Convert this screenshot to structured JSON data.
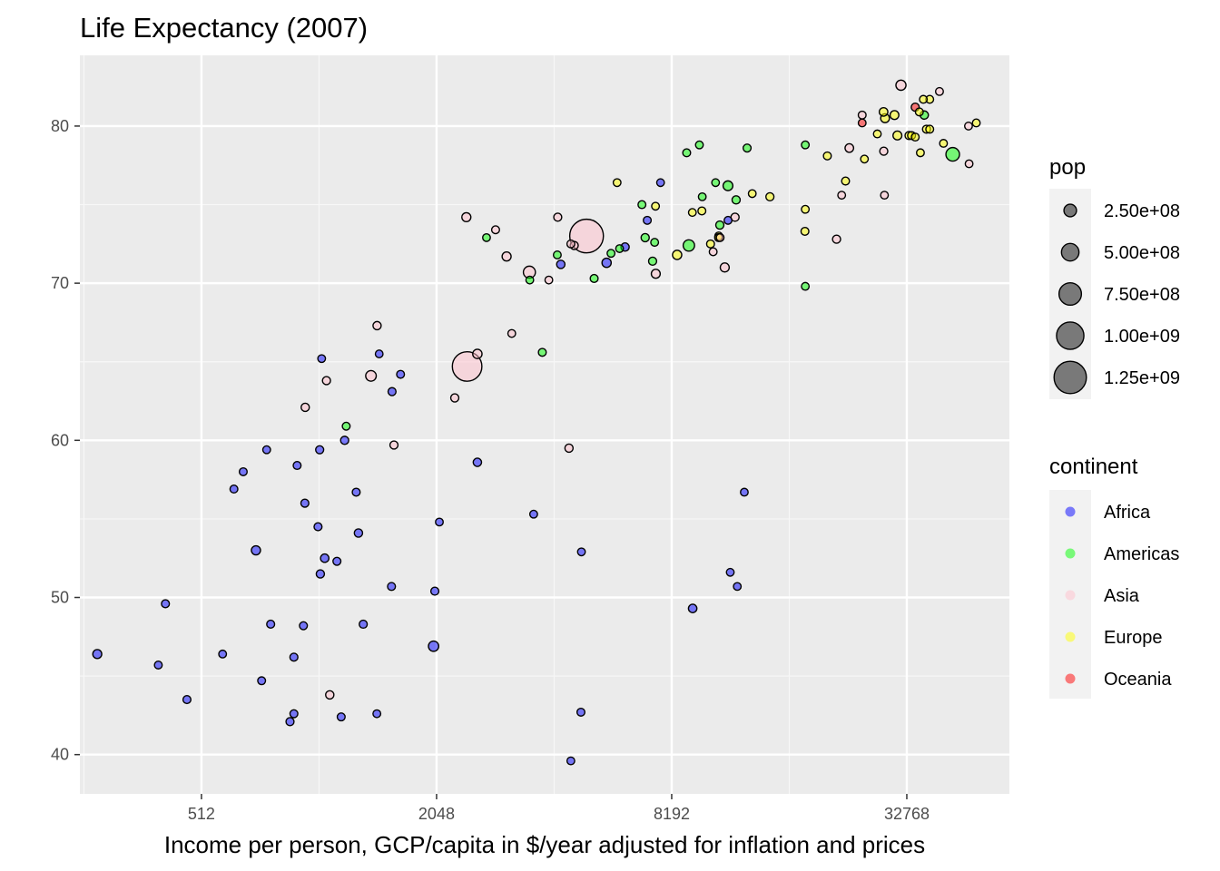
{
  "chart_data": {
    "type": "scatter",
    "title": "Life Expectancy (2007)",
    "xlabel": "Income per person, GCP/capita in $/year adjusted for inflation and prices",
    "ylabel": "",
    "x_scale": "log2",
    "xlim": [
      250,
      60000
    ],
    "ylim": [
      37.5,
      84.5
    ],
    "x_ticks": [
      512,
      2048,
      8192,
      32768
    ],
    "x_tick_labels": [
      "512",
      "2048",
      "8192",
      "32768"
    ],
    "y_ticks": [
      40,
      50,
      60,
      70,
      80
    ],
    "y_tick_labels": [
      "40",
      "50",
      "60",
      "70",
      "80"
    ],
    "grid": true,
    "size_legend": {
      "title": "pop",
      "values": [
        250000000,
        500000000,
        750000000,
        1000000000,
        1250000000
      ],
      "labels": [
        "2.50e+08",
        "5.00e+08",
        "7.50e+08",
        "1.00e+09",
        "1.25e+09"
      ]
    },
    "color_legend": {
      "title": "continent",
      "entries": [
        {
          "name": "Africa",
          "color": "#0000ff"
        },
        {
          "name": "Americas",
          "color": "#00ff00"
        },
        {
          "name": "Asia",
          "color": "#ffc0cb"
        },
        {
          "name": "Europe",
          "color": "#ffff00"
        },
        {
          "name": "Oceania",
          "color": "#ff0000"
        }
      ]
    },
    "series": [
      {
        "name": "Africa",
        "points": [
          {
            "x": 277,
            "y": 46.4,
            "pop": 69000000
          },
          {
            "x": 414,
            "y": 49.6,
            "pop": 15000000
          },
          {
            "x": 397,
            "y": 45.7,
            "pop": 6000000
          },
          {
            "x": 470,
            "y": 43.5,
            "pop": 15000000
          },
          {
            "x": 620,
            "y": 56.9,
            "pop": 11000000
          },
          {
            "x": 655,
            "y": 58.0,
            "pop": 9000000
          },
          {
            "x": 706,
            "y": 53.0,
            "pop": 76000000
          },
          {
            "x": 580,
            "y": 46.4,
            "pop": 4000000
          },
          {
            "x": 730,
            "y": 44.7,
            "pop": 9000000
          },
          {
            "x": 752,
            "y": 59.4,
            "pop": 5000000
          },
          {
            "x": 770,
            "y": 48.3,
            "pop": 15000000
          },
          {
            "x": 863,
            "y": 42.1,
            "pop": 19000000
          },
          {
            "x": 883,
            "y": 42.6,
            "pop": 12000000
          },
          {
            "x": 883,
            "y": 46.2,
            "pop": 17000000
          },
          {
            "x": 900,
            "y": 58.4,
            "pop": 11000000
          },
          {
            "x": 934,
            "y": 48.2,
            "pop": 13000000
          },
          {
            "x": 942,
            "y": 56.0,
            "pop": 18000000
          },
          {
            "x": 1018,
            "y": 54.5,
            "pop": 16000000
          },
          {
            "x": 1028,
            "y": 59.4,
            "pop": 20000000
          },
          {
            "x": 1032,
            "y": 51.5,
            "pop": 29000000
          },
          {
            "x": 1059,
            "y": 52.5,
            "pop": 38000000
          },
          {
            "x": 1040,
            "y": 65.2,
            "pop": 2000000
          },
          {
            "x": 1138,
            "y": 52.3,
            "pop": 14000000
          },
          {
            "x": 1167,
            "y": 42.4,
            "pop": 12000000
          },
          {
            "x": 1191,
            "y": 60.0,
            "pop": 23000000
          },
          {
            "x": 1275,
            "y": 56.7,
            "pop": 12000000
          },
          {
            "x": 1292,
            "y": 54.1,
            "pop": 33000000
          },
          {
            "x": 1329,
            "y": 48.3,
            "pop": 19000000
          },
          {
            "x": 1440,
            "y": 42.6,
            "pop": 5000000
          },
          {
            "x": 1460,
            "y": 65.5,
            "pop": 1000000
          },
          {
            "x": 1575,
            "y": 63.1,
            "pop": 17000000
          },
          {
            "x": 1570,
            "y": 50.7,
            "pop": 13000000
          },
          {
            "x": 1656,
            "y": 64.2,
            "pop": 9000000
          },
          {
            "x": 2012,
            "y": 46.9,
            "pop": 135000000
          },
          {
            "x": 2027,
            "y": 50.4,
            "pop": 18000000
          },
          {
            "x": 2082,
            "y": 54.8,
            "pop": 3000000
          },
          {
            "x": 2605,
            "y": 58.6,
            "pop": 35000000
          },
          {
            "x": 3630,
            "y": 55.3,
            "pop": 4000000
          },
          {
            "x": 4520,
            "y": 39.6,
            "pop": 3000000
          },
          {
            "x": 4797,
            "y": 42.7,
            "pop": 9000000
          },
          {
            "x": 4811,
            "y": 52.9,
            "pop": 3000000
          },
          {
            "x": 4260,
            "y": 71.2,
            "pop": 33000000
          },
          {
            "x": 5581,
            "y": 71.3,
            "pop": 80000000
          },
          {
            "x": 6223,
            "y": 72.3,
            "pop": 33000000
          },
          {
            "x": 7093,
            "y": 74.0,
            "pop": 10000000
          },
          {
            "x": 7670,
            "y": 76.4,
            "pop": 1000000
          },
          {
            "x": 9270,
            "y": 49.3,
            "pop": 42000000
          },
          {
            "x": 11420,
            "y": 74.0,
            "pop": 6000000
          },
          {
            "x": 11570,
            "y": 51.6,
            "pop": 2000000
          },
          {
            "x": 12060,
            "y": 50.7,
            "pop": 2000000
          },
          {
            "x": 12570,
            "y": 56.7,
            "pop": 1000000
          }
        ]
      },
      {
        "name": "Americas",
        "points": [
          {
            "x": 1202,
            "y": 60.9,
            "pop": 8000000
          },
          {
            "x": 2749,
            "y": 72.9,
            "pop": 2000000
          },
          {
            "x": 3548,
            "y": 70.2,
            "pop": 3000000
          },
          {
            "x": 3820,
            "y": 65.6,
            "pop": 9000000
          },
          {
            "x": 4173,
            "y": 71.8,
            "pop": 6000000
          },
          {
            "x": 5186,
            "y": 70.3,
            "pop": 13000000
          },
          {
            "x": 5728,
            "y": 71.9,
            "pop": 6000000
          },
          {
            "x": 6025,
            "y": 72.2,
            "pop": 3000000
          },
          {
            "x": 6873,
            "y": 75.0,
            "pop": 10000000
          },
          {
            "x": 7006,
            "y": 72.9,
            "pop": 28000000
          },
          {
            "x": 7408,
            "y": 72.6,
            "pop": 6000000
          },
          {
            "x": 7320,
            "y": 71.4,
            "pop": 21000000
          },
          {
            "x": 8948,
            "y": 78.3,
            "pop": 11000000
          },
          {
            "x": 9065,
            "y": 72.4,
            "pop": 190000000
          },
          {
            "x": 9645,
            "y": 78.8,
            "pop": 4000000
          },
          {
            "x": 9809,
            "y": 75.5,
            "pop": 3000000
          },
          {
            "x": 10611,
            "y": 76.4,
            "pop": 1000000
          },
          {
            "x": 11415,
            "y": 76.2,
            "pop": 108000000
          },
          {
            "x": 11977,
            "y": 75.3,
            "pop": 26000000
          },
          {
            "x": 10880,
            "y": 73.7,
            "pop": 26000000
          },
          {
            "x": 12779,
            "y": 78.6,
            "pop": 16000000
          },
          {
            "x": 18009,
            "y": 78.8,
            "pop": 4000000
          },
          {
            "x": 18008,
            "y": 69.8,
            "pop": 1000000
          },
          {
            "x": 36319,
            "y": 80.7,
            "pop": 33000000
          },
          {
            "x": 42952,
            "y": 78.2,
            "pop": 301000000
          }
        ]
      },
      {
        "name": "Asia",
        "points": [
          {
            "x": 1091,
            "y": 43.8,
            "pop": 32000000
          },
          {
            "x": 944,
            "y": 62.1,
            "pop": 28000000
          },
          {
            "x": 1070,
            "y": 63.8,
            "pop": 23000000
          },
          {
            "x": 1391,
            "y": 64.1,
            "pop": 150000000
          },
          {
            "x": 1593,
            "y": 59.7,
            "pop": 22000000
          },
          {
            "x": 1442,
            "y": 67.3,
            "pop": 28000000
          },
          {
            "x": 2280,
            "y": 62.7,
            "pop": 24000000
          },
          {
            "x": 2452,
            "y": 64.7,
            "pop": 1110000000
          },
          {
            "x": 2605,
            "y": 65.5,
            "pop": 85000000
          },
          {
            "x": 2441,
            "y": 74.2,
            "pop": 71000000
          },
          {
            "x": 3095,
            "y": 71.7,
            "pop": 70000000
          },
          {
            "x": 2900,
            "y": 73.4,
            "pop": 10000000
          },
          {
            "x": 3190,
            "y": 66.8,
            "pop": 4000000
          },
          {
            "x": 3540,
            "y": 70.7,
            "pop": 223000000
          },
          {
            "x": 3970,
            "y": 70.2,
            "pop": 3000000
          },
          {
            "x": 4471,
            "y": 59.5,
            "pop": 28000000
          },
          {
            "x": 4520,
            "y": 72.5,
            "pop": 6000000
          },
          {
            "x": 4184,
            "y": 74.2,
            "pop": 19000000
          },
          {
            "x": 4959,
            "y": 73.0,
            "pop": 1319000000
          },
          {
            "x": 4611,
            "y": 72.4,
            "pop": 22000000
          },
          {
            "x": 7458,
            "y": 70.6,
            "pop": 65000000
          },
          {
            "x": 10461,
            "y": 72.0,
            "pop": 7000000
          },
          {
            "x": 10900,
            "y": 72.9,
            "pop": 3000000
          },
          {
            "x": 11200,
            "y": 71.0,
            "pop": 69000000
          },
          {
            "x": 11900,
            "y": 74.2,
            "pop": 27000000
          },
          {
            "x": 21654,
            "y": 72.8,
            "pop": 25000000
          },
          {
            "x": 23348,
            "y": 78.6,
            "pop": 49000000
          },
          {
            "x": 22316,
            "y": 75.6,
            "pop": 3000000
          },
          {
            "x": 25185,
            "y": 80.7,
            "pop": 7000000
          },
          {
            "x": 28604,
            "y": 78.4,
            "pop": 23000000
          },
          {
            "x": 28718,
            "y": 75.6,
            "pop": 2000000
          },
          {
            "x": 31656,
            "y": 82.6,
            "pop": 127000000
          },
          {
            "x": 39725,
            "y": 82.2,
            "pop": 7000000
          },
          {
            "x": 47143,
            "y": 80.0,
            "pop": 4000000
          },
          {
            "x": 47307,
            "y": 77.6,
            "pop": 2000000
          }
        ]
      },
      {
        "name": "Europe",
        "points": [
          {
            "x": 5937,
            "y": 76.4,
            "pop": 4000000
          },
          {
            "x": 7446,
            "y": 74.9,
            "pop": 4000000
          },
          {
            "x": 8458,
            "y": 71.8,
            "pop": 82000000
          },
          {
            "x": 9787,
            "y": 74.6,
            "pop": 10000000
          },
          {
            "x": 9253,
            "y": 74.5,
            "pop": 1000000
          },
          {
            "x": 10808,
            "y": 73.0,
            "pop": 10000000
          },
          {
            "x": 10300,
            "y": 72.5,
            "pop": 10000000
          },
          {
            "x": 10800,
            "y": 72.9,
            "pop": 10000000
          },
          {
            "x": 13172,
            "y": 75.7,
            "pop": 2000000
          },
          {
            "x": 14619,
            "y": 75.5,
            "pop": 22000000
          },
          {
            "x": 17970,
            "y": 73.3,
            "pop": 10000000
          },
          {
            "x": 18008,
            "y": 74.7,
            "pop": 4000000
          },
          {
            "x": 20510,
            "y": 78.1,
            "pop": 10000000
          },
          {
            "x": 22833,
            "y": 76.5,
            "pop": 11000000
          },
          {
            "x": 25523,
            "y": 77.9,
            "pop": 2000000
          },
          {
            "x": 27538,
            "y": 79.5,
            "pop": 3000000
          },
          {
            "x": 28569,
            "y": 80.9,
            "pop": 45000000
          },
          {
            "x": 28821,
            "y": 80.5,
            "pop": 59000000
          },
          {
            "x": 30470,
            "y": 80.7,
            "pop": 58000000
          },
          {
            "x": 31000,
            "y": 79.4,
            "pop": 61000000
          },
          {
            "x": 33203,
            "y": 79.4,
            "pop": 20000000
          },
          {
            "x": 33692,
            "y": 79.4,
            "pop": 10000000
          },
          {
            "x": 34435,
            "y": 79.3,
            "pop": 8000000
          },
          {
            "x": 35278,
            "y": 80.9,
            "pop": 9000000
          },
          {
            "x": 36126,
            "y": 81.7,
            "pop": 4000000
          },
          {
            "x": 37506,
            "y": 81.7,
            "pop": 7000000
          },
          {
            "x": 36797,
            "y": 79.8,
            "pop": 16000000
          },
          {
            "x": 37506,
            "y": 79.8,
            "pop": 10000000
          },
          {
            "x": 35500,
            "y": 78.3,
            "pop": 5000000
          },
          {
            "x": 40676,
            "y": 78.9,
            "pop": 4000000
          },
          {
            "x": 49357,
            "y": 80.2,
            "pop": 4000000
          }
        ]
      },
      {
        "name": "Oceania",
        "points": [
          {
            "x": 25185,
            "y": 80.2,
            "pop": 4000000
          },
          {
            "x": 34435,
            "y": 81.2,
            "pop": 20000000
          }
        ]
      }
    ]
  }
}
